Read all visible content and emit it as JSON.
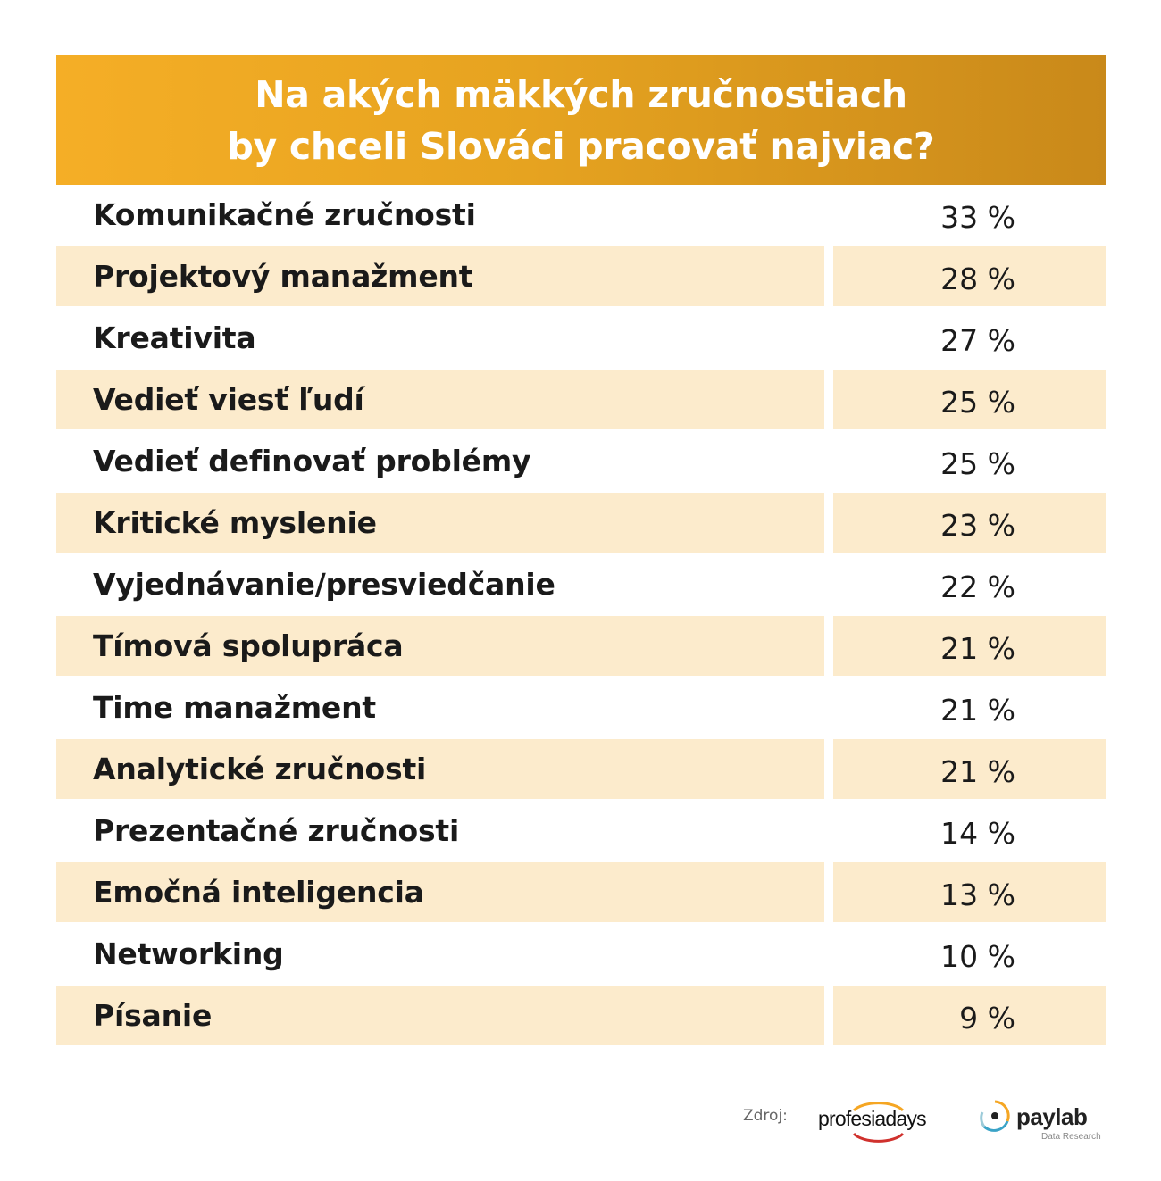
{
  "chart_data": {
    "type": "table",
    "title_lines": [
      "Na akých mäkkých zručnostiach",
      "by chceli Slováci pracovať najviac?"
    ],
    "rows": [
      {
        "label": "Komunikačné zručnosti",
        "value": 33,
        "display": "33 %"
      },
      {
        "label": "Projektový manažment",
        "value": 28,
        "display": "28 %"
      },
      {
        "label": "Kreativita",
        "value": 27,
        "display": "27 %"
      },
      {
        "label": "Vedieť viesť ľudí",
        "value": 25,
        "display": "25 %"
      },
      {
        "label": "Vedieť definovať problémy",
        "value": 25,
        "display": "25 %"
      },
      {
        "label": "Kritické myslenie",
        "value": 23,
        "display": "23 %"
      },
      {
        "label": "Vyjednávanie/presviedčanie",
        "value": 22,
        "display": "22 %"
      },
      {
        "label": "Tímová spolupráca",
        "value": 21,
        "display": "21 %"
      },
      {
        "label": "Time manažment",
        "value": 21,
        "display": "21 %"
      },
      {
        "label": "Analytické zručnosti",
        "value": 21,
        "display": "21 %"
      },
      {
        "label": "Prezentačné zručnosti",
        "value": 14,
        "display": "14 %"
      },
      {
        "label": "Emočná inteligencia",
        "value": 13,
        "display": "13 %"
      },
      {
        "label": "Networking",
        "value": 10,
        "display": "10 %"
      },
      {
        "label": "Písanie",
        "value": 9,
        "display": "9 %"
      }
    ],
    "colors": {
      "header_start": "#f5ae26",
      "header_end": "#c9891a",
      "row_shade": "#fcebcc"
    }
  },
  "footer": {
    "source_label": "Zdroj:",
    "logo1": "profesiadays",
    "logo2": "paylab",
    "logo2_sub": "Data Research"
  }
}
